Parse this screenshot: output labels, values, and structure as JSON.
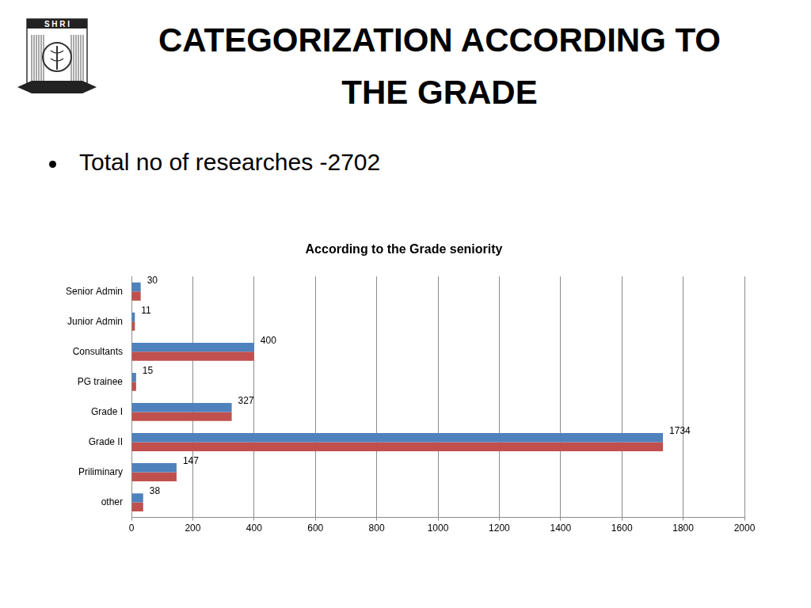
{
  "slide": {
    "logo": "S H R I",
    "title": "CATEGORIZATION ACCORDING TO THE GRADE",
    "bullets": [
      "Total no of researches -2702"
    ]
  },
  "chart_data": {
    "type": "bar",
    "orientation": "horizontal",
    "title": "According to the Grade seniority",
    "categories": [
      "Senior Admin",
      "Junior Admin",
      "Consultants",
      "PG trainee",
      "Grade I",
      "Grade II",
      "Priliminary",
      "other"
    ],
    "series": [
      {
        "color": "#4f81bd",
        "values": [
          30,
          11,
          400,
          15,
          327,
          1734,
          147,
          38
        ],
        "data_labels": true
      },
      {
        "color": "#c0504d",
        "values": [
          30,
          11,
          400,
          15,
          327,
          1734,
          147,
          38
        ]
      }
    ],
    "xlim": [
      0,
      2000
    ],
    "xticks": [
      0,
      200,
      400,
      600,
      800,
      1000,
      1200,
      1400,
      1600,
      1800,
      2000
    ],
    "grid": true
  }
}
